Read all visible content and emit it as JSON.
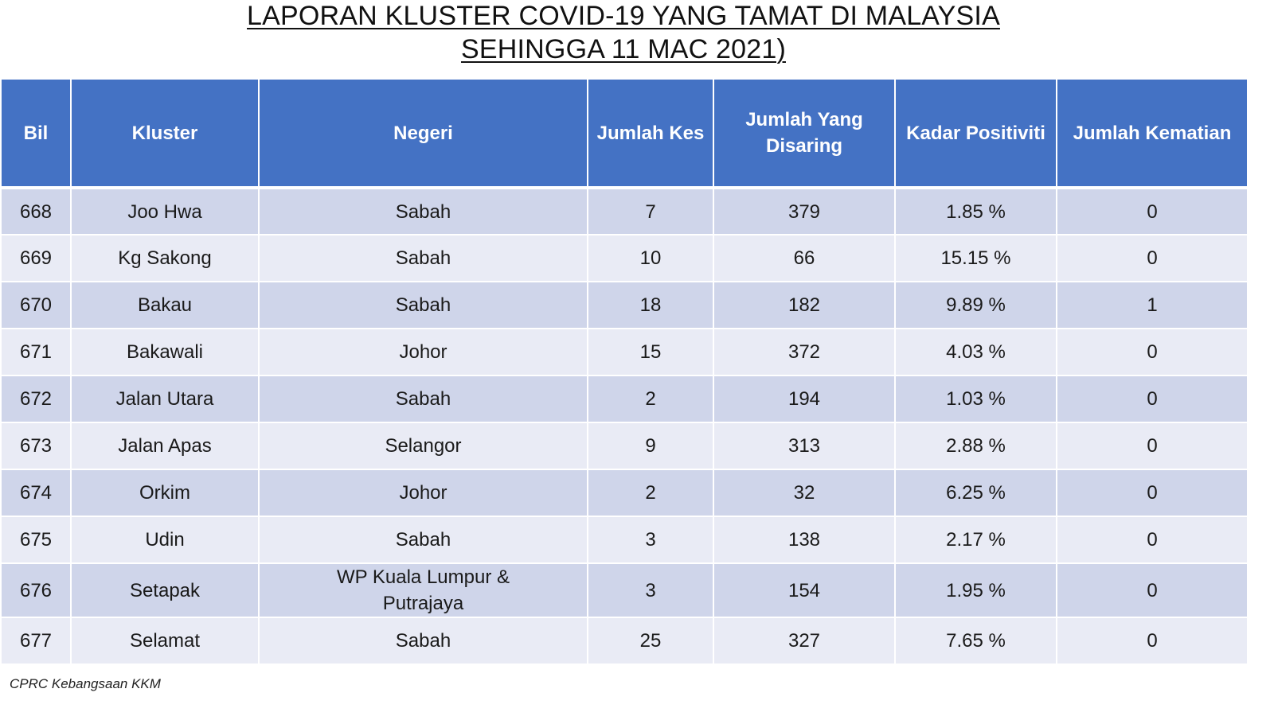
{
  "title": {
    "line1": "LAPORAN KLUSTER COVID-19 YANG TAMAT DI MALAYSIA",
    "line2": "SEHINGGA 11 MAC 2021)"
  },
  "headers": {
    "bil": "Bil",
    "kluster": "Kluster",
    "negeri": "Negeri",
    "jumlah_kes": "Jumlah Kes",
    "jumlah_disaring": "Jumlah Yang Disaring",
    "kadar_positiviti": "Kadar Positiviti",
    "jumlah_kematian": "Jumlah Kematian"
  },
  "rows": [
    {
      "bil": "668",
      "kluster": "Joo Hwa",
      "negeri": "Sabah",
      "kes": "7",
      "disaring": "379",
      "positiviti": "1.85 %",
      "kematian": "0"
    },
    {
      "bil": "669",
      "kluster": "Kg Sakong",
      "negeri": "Sabah",
      "kes": "10",
      "disaring": "66",
      "positiviti": "15.15 %",
      "kematian": "0"
    },
    {
      "bil": "670",
      "kluster": "Bakau",
      "negeri": "Sabah",
      "kes": "18",
      "disaring": "182",
      "positiviti": "9.89 %",
      "kematian": "1"
    },
    {
      "bil": "671",
      "kluster": "Bakawali",
      "negeri": "Johor",
      "kes": "15",
      "disaring": "372",
      "positiviti": "4.03 %",
      "kematian": "0"
    },
    {
      "bil": "672",
      "kluster": "Jalan Utara",
      "negeri": "Sabah",
      "kes": "2",
      "disaring": "194",
      "positiviti": "1.03 %",
      "kematian": "0"
    },
    {
      "bil": "673",
      "kluster": "Jalan Apas",
      "negeri": "Selangor",
      "kes": "9",
      "disaring": "313",
      "positiviti": "2.88 %",
      "kematian": "0"
    },
    {
      "bil": "674",
      "kluster": "Orkim",
      "negeri": "Johor",
      "kes": "2",
      "disaring": "32",
      "positiviti": "6.25 %",
      "kematian": "0"
    },
    {
      "bil": "675",
      "kluster": "Udin",
      "negeri": "Sabah",
      "kes": "3",
      "disaring": "138",
      "positiviti": "2.17 %",
      "kematian": "0"
    },
    {
      "bil": "676",
      "kluster": "Setapak",
      "negeri": "WP Kuala Lumpur & Putrajaya",
      "kes": "3",
      "disaring": "154",
      "positiviti": "1.95 %",
      "kematian": "0"
    },
    {
      "bil": "677",
      "kluster": "Selamat",
      "negeri": "Sabah",
      "kes": "25",
      "disaring": "327",
      "positiviti": "7.65 %",
      "kematian": "0"
    }
  ],
  "footer": {
    "source": "CPRC Kebangsaan KKM"
  },
  "colors": {
    "header_bg": "#4472c4",
    "row_dark": "#cfd5ea",
    "row_light": "#e9ebf5"
  }
}
